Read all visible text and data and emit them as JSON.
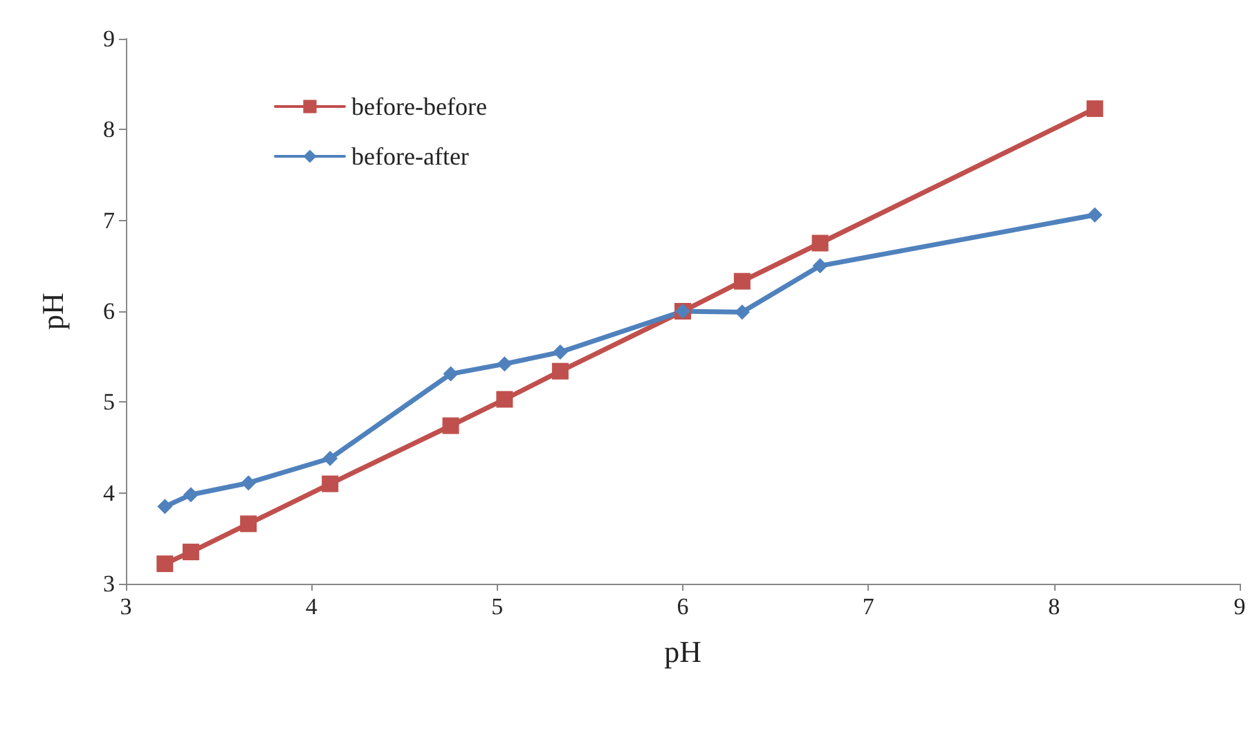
{
  "chart_data": {
    "type": "line",
    "xlabel": "pH",
    "ylabel": "pH",
    "xlim": [
      3,
      9
    ],
    "xticks": [
      3,
      4,
      5,
      6,
      7,
      8,
      9
    ],
    "ylim": [
      3,
      9
    ],
    "yticks": [
      3,
      4,
      5,
      6,
      7,
      8,
      9
    ],
    "grid": false,
    "legend": "top left",
    "line_style": "solid",
    "x": [
      3.21,
      3.35,
      3.66,
      4.1,
      4.75,
      5.04,
      5.34,
      6.0,
      6.32,
      6.74,
      8.22
    ],
    "series": [
      {
        "name": "before-before",
        "color": "#c0504d",
        "marker": "square",
        "values": [
          3.22,
          3.35,
          3.66,
          4.1,
          4.74,
          5.03,
          5.34,
          6.0,
          6.33,
          6.75,
          8.23
        ]
      },
      {
        "name": "before-after",
        "color": "#4f81bd",
        "marker": "diamond",
        "values": [
          3.85,
          3.98,
          4.11,
          4.38,
          5.31,
          5.42,
          5.55,
          6.0,
          5.99,
          6.5,
          7.06
        ]
      }
    ]
  }
}
